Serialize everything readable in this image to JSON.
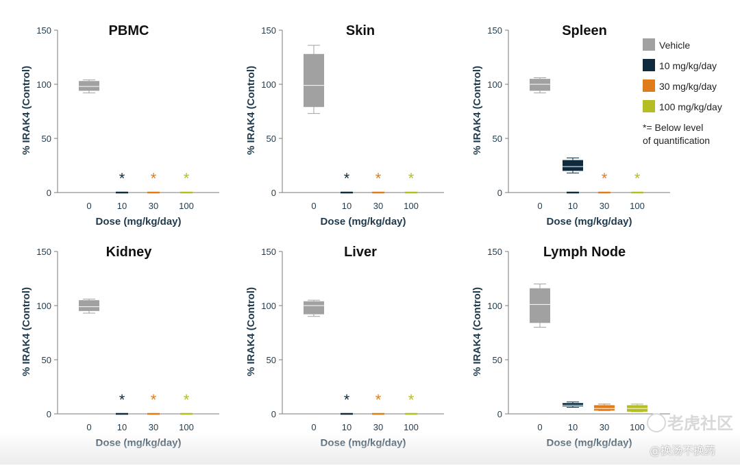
{
  "colors": {
    "vehicle": "#a1a1a1",
    "dose10": "#0f2b3d",
    "dose30": "#e07b1a",
    "dose100": "#b4be22",
    "axis": "#7a7a7a",
    "text": "#1f3a4d"
  },
  "legend": {
    "items": [
      {
        "label": "Vehicle",
        "color": "#a1a1a1"
      },
      {
        "label": "10 mg/kg/day",
        "color": "#0f2b3d"
      },
      {
        "label": "30 mg/kg/day",
        "color": "#e07b1a"
      },
      {
        "label": "100 mg/kg/day",
        "color": "#b4be22"
      }
    ],
    "note_line1": "*= Below level",
    "note_line2": "of quantification"
  },
  "watermark": {
    "line1": "老虎社区",
    "line2": "@换汤不换药"
  },
  "chart_data": [
    {
      "type": "box",
      "title": "PBMC",
      "xlabel": "Dose (mg/kg/day)",
      "ylabel": "% IRAK4 (Control)",
      "ylim": [
        0,
        150
      ],
      "yticks": [
        0,
        50,
        100,
        150
      ],
      "categories": [
        "0",
        "10",
        "30",
        "100"
      ],
      "boxes": [
        {
          "category": "0",
          "min": 92,
          "q1": 94,
          "median": 98,
          "q3": 103,
          "max": 104
        },
        {
          "category": "10",
          "min": 0,
          "q1": 0,
          "median": 0,
          "q3": 0,
          "max": 0,
          "blq": true
        },
        {
          "category": "30",
          "min": 0,
          "q1": 0,
          "median": 0,
          "q3": 0,
          "max": 0,
          "blq": true
        },
        {
          "category": "100",
          "min": 0,
          "q1": 0,
          "median": 0,
          "q3": 0,
          "max": 0,
          "blq": true
        }
      ]
    },
    {
      "type": "box",
      "title": "Skin",
      "xlabel": "Dose (mg/kg/day)",
      "ylabel": "% IRAK4 (Control)",
      "ylim": [
        0,
        150
      ],
      "yticks": [
        0,
        50,
        100,
        150
      ],
      "categories": [
        "0",
        "10",
        "30",
        "100"
      ],
      "boxes": [
        {
          "category": "0",
          "min": 73,
          "q1": 79,
          "median": 99,
          "q3": 128,
          "max": 136
        },
        {
          "category": "10",
          "min": 0,
          "q1": 0,
          "median": 0,
          "q3": 0,
          "max": 0,
          "blq": true
        },
        {
          "category": "30",
          "min": 0,
          "q1": 0,
          "median": 0,
          "q3": 0,
          "max": 0,
          "blq": true
        },
        {
          "category": "100",
          "min": 0,
          "q1": 0,
          "median": 0,
          "q3": 0,
          "max": 0,
          "blq": true
        }
      ]
    },
    {
      "type": "box",
      "title": "Spleen",
      "xlabel": "Dose (mg/kg/day)",
      "ylabel": "% IRAK4 (Control)",
      "ylim": [
        0,
        150
      ],
      "yticks": [
        0,
        50,
        100,
        150
      ],
      "categories": [
        "0",
        "10",
        "30",
        "100"
      ],
      "boxes": [
        {
          "category": "0",
          "min": 92,
          "q1": 94,
          "median": 100,
          "q3": 105,
          "max": 106
        },
        {
          "category": "10",
          "min": 18,
          "q1": 20,
          "median": 24,
          "q3": 30,
          "max": 32,
          "extra_mark_at_zero": true
        },
        {
          "category": "30",
          "min": 0,
          "q1": 0,
          "median": 0,
          "q3": 0,
          "max": 0,
          "blq": true
        },
        {
          "category": "100",
          "min": 0,
          "q1": 0,
          "median": 0,
          "q3": 0,
          "max": 0,
          "blq": true
        }
      ]
    },
    {
      "type": "box",
      "title": "Kidney",
      "xlabel": "Dose (mg/kg/day)",
      "ylabel": "% IRAK4 (Control)",
      "ylim": [
        0,
        150
      ],
      "yticks": [
        0,
        50,
        100,
        150
      ],
      "categories": [
        "0",
        "10",
        "30",
        "100"
      ],
      "boxes": [
        {
          "category": "0",
          "min": 93,
          "q1": 95,
          "median": 99,
          "q3": 105,
          "max": 106
        },
        {
          "category": "10",
          "min": 0,
          "q1": 0,
          "median": 0,
          "q3": 0,
          "max": 0,
          "blq": true
        },
        {
          "category": "30",
          "min": 0,
          "q1": 0,
          "median": 0,
          "q3": 0,
          "max": 0,
          "blq": true
        },
        {
          "category": "100",
          "min": 0,
          "q1": 0,
          "median": 0,
          "q3": 0,
          "max": 0,
          "blq": true
        }
      ]
    },
    {
      "type": "box",
      "title": "Liver",
      "xlabel": "Dose (mg/kg/day)",
      "ylabel": "% IRAK4 (Control)",
      "ylim": [
        0,
        150
      ],
      "yticks": [
        0,
        50,
        100,
        150
      ],
      "categories": [
        "0",
        "10",
        "30",
        "100"
      ],
      "boxes": [
        {
          "category": "0",
          "min": 90,
          "q1": 92,
          "median": 100,
          "q3": 104,
          "max": 105
        },
        {
          "category": "10",
          "min": 0,
          "q1": 0,
          "median": 0,
          "q3": 0,
          "max": 0,
          "blq": true
        },
        {
          "category": "30",
          "min": 0,
          "q1": 0,
          "median": 0,
          "q3": 0,
          "max": 0,
          "blq": true
        },
        {
          "category": "100",
          "min": 0,
          "q1": 0,
          "median": 0,
          "q3": 0,
          "max": 0,
          "blq": true
        }
      ]
    },
    {
      "type": "box",
      "title": "Lymph Node",
      "xlabel": "Dose (mg/kg/day)",
      "ylabel": "% IRAK4 (Control)",
      "ylim": [
        0,
        150
      ],
      "yticks": [
        0,
        50,
        100,
        150
      ],
      "categories": [
        "0",
        "10",
        "30",
        "100"
      ],
      "boxes": [
        {
          "category": "0",
          "min": 80,
          "q1": 84,
          "median": 101,
          "q3": 116,
          "max": 120
        },
        {
          "category": "10",
          "min": 6,
          "q1": 7,
          "median": 8,
          "q3": 10,
          "max": 11
        },
        {
          "category": "30",
          "min": 3,
          "q1": 3,
          "median": 5,
          "q3": 8,
          "max": 9
        },
        {
          "category": "100",
          "min": 2,
          "q1": 2,
          "median": 5,
          "q3": 8,
          "max": 9
        }
      ]
    }
  ]
}
